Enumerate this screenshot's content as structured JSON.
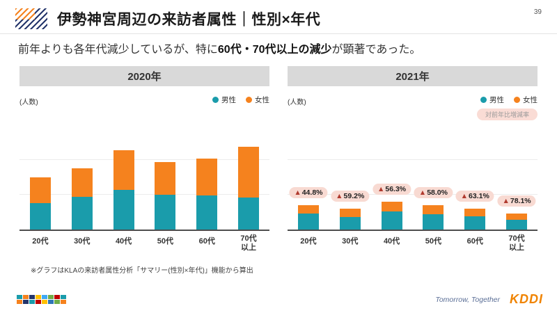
{
  "page": {
    "number": "39",
    "title": "伊勢神宮周辺の来訪者属性｜性別×年代",
    "subtitle_pre": "前年よりも各年代減少しているが、特に",
    "subtitle_bold": "60代・70代以上の減少",
    "subtitle_post": "が顕著であった。",
    "footnote": "※グラフはKLAの来訪者属性分析「サマリー(性別×年代)」機能から算出"
  },
  "colors": {
    "male": "#1A9CAB",
    "female": "#F5821E",
    "annotation_bg": "#F8DAD2",
    "annotation_marker": "#B03A2E",
    "panel_header_bg": "#D9D9D9"
  },
  "chart_data": [
    {
      "type": "bar",
      "stacked": true,
      "title": "2020年",
      "ylabel": "(人数)",
      "categories": [
        "20代",
        "30代",
        "40代",
        "50代",
        "60代",
        "70代以上"
      ],
      "series": [
        {
          "name": "男性",
          "color": "#1A9CAB",
          "values": [
            38,
            47,
            57,
            50,
            49,
            46
          ]
        },
        {
          "name": "女性",
          "color": "#F5821E",
          "values": [
            37,
            41,
            57,
            47,
            53,
            73
          ]
        }
      ],
      "value_axis": "no numeric ticks shown; values are relative estimates from bar heights",
      "legend_position": "top-right"
    },
    {
      "type": "bar",
      "stacked": true,
      "title": "2021年",
      "ylabel": "(人数)",
      "categories": [
        "20代",
        "30代",
        "40代",
        "50代",
        "60代",
        "70代以上"
      ],
      "series": [
        {
          "name": "男性",
          "color": "#1A9CAB",
          "values": [
            23,
            18,
            26,
            22,
            19,
            14
          ]
        },
        {
          "name": "女性",
          "color": "#F5821E",
          "values": [
            12,
            12,
            14,
            13,
            11,
            9
          ]
        }
      ],
      "annotations": {
        "legend": "対前年比増減率",
        "marker": "▲",
        "values": [
          "44.8%",
          "59.2%",
          "56.3%",
          "58.0%",
          "63.1%",
          "78.1%"
        ]
      },
      "value_axis": "no numeric ticks shown; values are relative estimates from bar heights",
      "legend_position": "top-right"
    }
  ],
  "footer": {
    "tagline": "Tomorrow, Together",
    "brand": "KDDI",
    "logo_colors": [
      "#1A9CAB",
      "#F5821E",
      "#24356B",
      "#FFC000",
      "#3FA9F5",
      "#70AD47",
      "#C00000",
      "#1A9CAB",
      "#F5821E",
      "#24356B",
      "#1A9CAB",
      "#C00000",
      "#FFC000",
      "#2E75B6",
      "#70AD47",
      "#F5821E"
    ]
  }
}
